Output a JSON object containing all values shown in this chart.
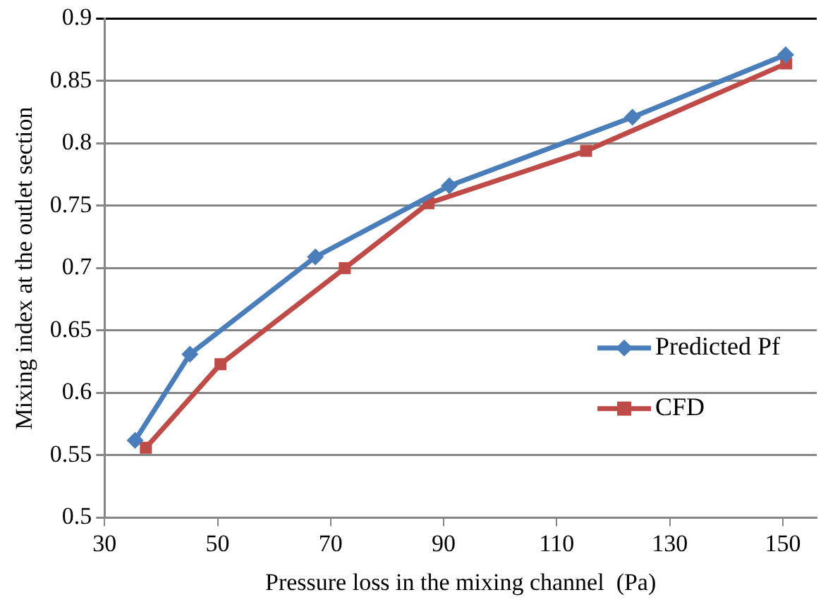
{
  "chart_data": {
    "type": "line",
    "xlabel": "Pressure loss in the mixing channel  (Pa)",
    "ylabel": "Mixing index at the outlet section",
    "xlim": [
      30,
      156
    ],
    "xticks": [
      30,
      50,
      70,
      90,
      110,
      130,
      150
    ],
    "ylim": [
      0.5,
      0.9
    ],
    "yticks": [
      0.5,
      0.55,
      0.6,
      0.65,
      0.7,
      0.75,
      0.8,
      0.85,
      0.9
    ],
    "grid": "y",
    "legend": "right",
    "line_style": "solid",
    "series": [
      {
        "name": "Predicted Pf",
        "color": "#4a7ebb",
        "marker": "diamond",
        "x": [
          35.4,
          45.1,
          67.3,
          91.0,
          123.4,
          150.5
        ],
        "values": [
          0.562,
          0.631,
          0.709,
          0.766,
          0.821,
          0.871
        ]
      },
      {
        "name": "CFD",
        "color": "#be4b48",
        "marker": "square",
        "x": [
          37.3,
          50.5,
          72.5,
          87.3,
          115.2,
          150.6
        ],
        "values": [
          0.556,
          0.623,
          0.7,
          0.752,
          0.794,
          0.864
        ]
      }
    ]
  }
}
